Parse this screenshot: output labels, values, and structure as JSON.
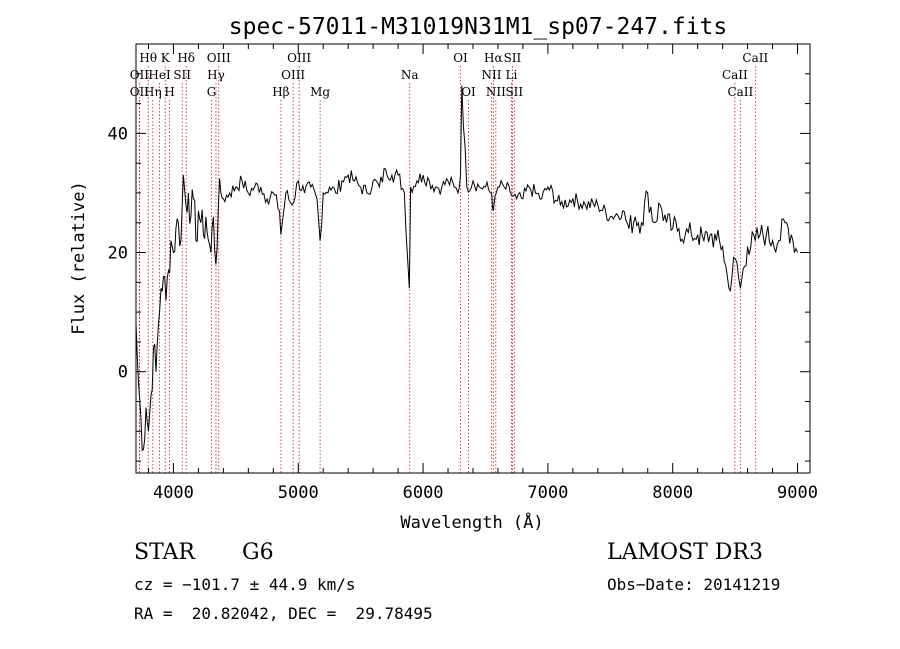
{
  "chart_data": {
    "type": "line",
    "title": "spec-57011-M31019N31M1_sp07-247.fits",
    "xlabel": "Wavelength (Å)",
    "ylabel": "Flux (relative)",
    "xlim": [
      3700,
      9100
    ],
    "ylim": [
      -17,
      55
    ],
    "xticks": [
      4000,
      5000,
      6000,
      7000,
      8000,
      9000
    ],
    "yticks": [
      0,
      20,
      40
    ],
    "grid": false,
    "line_color": "#000000",
    "marker_color": "#b22222",
    "series": [
      {
        "x": [
          3700,
          3720,
          3740,
          3760,
          3780,
          3800,
          3820,
          3840,
          3860,
          3880,
          3900,
          3920,
          3940,
          3960,
          3980,
          4000,
          4020,
          4040,
          4060,
          4080,
          4100,
          4120,
          4140,
          4160,
          4180,
          4200,
          4220,
          4240,
          4260,
          4280,
          4300,
          4320,
          4340,
          4360,
          4380,
          4400,
          4450,
          4500,
          4550,
          4600,
          4650,
          4700,
          4750,
          4800,
          4850,
          4861,
          4900,
          4950,
          5000,
          5050,
          5100,
          5150,
          5175,
          5200,
          5250,
          5300,
          5350,
          5400,
          5450,
          5500,
          5550,
          5600,
          5650,
          5700,
          5750,
          5800,
          5850,
          5890,
          5900,
          5950,
          6000,
          6050,
          6100,
          6150,
          6200,
          6250,
          6280,
          6300,
          6310,
          6350,
          6400,
          6450,
          6500,
          6550,
          6563,
          6600,
          6650,
          6700,
          6750,
          6800,
          6850,
          6900,
          6950,
          7000,
          7100,
          7200,
          7300,
          7400,
          7500,
          7600,
          7650,
          7700,
          7750,
          7800,
          7850,
          7900,
          7950,
          8000,
          8050,
          8100,
          8150,
          8200,
          8250,
          8300,
          8350,
          8400,
          8450,
          8500,
          8542,
          8600,
          8662,
          8700,
          8750,
          8800,
          8850,
          8900,
          8950,
          9000
        ],
        "values": [
          8,
          -2,
          -8,
          -13,
          -6,
          -10,
          -4,
          4,
          0,
          8,
          14,
          16,
          12,
          17,
          22,
          20,
          24,
          25,
          22,
          33,
          28,
          30,
          26,
          29,
          22,
          27,
          25,
          23,
          26,
          22,
          20,
          26,
          18,
          28,
          30,
          29,
          30,
          31,
          32,
          30,
          31,
          31,
          29,
          30,
          27,
          23,
          30,
          28,
          32,
          30,
          31,
          29,
          22,
          30,
          31,
          30,
          32,
          33,
          32,
          31,
          30,
          32,
          31,
          34,
          33,
          33,
          30,
          14,
          31,
          32,
          33,
          32,
          31,
          31,
          32,
          31,
          30,
          33,
          48,
          31,
          32,
          31,
          31,
          30,
          27,
          31,
          31,
          30,
          29,
          29,
          31,
          30,
          29,
          31,
          28,
          29,
          28,
          28,
          26,
          27,
          24,
          26,
          25,
          30,
          25,
          28,
          25,
          24,
          24,
          23,
          23,
          23,
          22,
          23,
          22,
          21,
          14,
          19,
          14,
          21,
          22,
          23,
          23,
          22,
          22,
          25,
          23,
          20
        ]
      }
    ],
    "lines": [
      {
        "label": "Hθ",
        "x": 3798,
        "row": 1
      },
      {
        "label": "OII",
        "x": 3727,
        "row": 2
      },
      {
        "label": "OII",
        "x": 3727,
        "row": 3
      },
      {
        "label": "Hη",
        "x": 3835,
        "row": 3
      },
      {
        "label": "HeI",
        "x": 3889,
        "row": 2
      },
      {
        "label": "K",
        "x": 3934,
        "row": 1
      },
      {
        "label": "H",
        "x": 3969,
        "row": 3
      },
      {
        "label": "SII",
        "x": 4070,
        "row": 2
      },
      {
        "label": "Hδ",
        "x": 4102,
        "row": 1
      },
      {
        "label": "OIII",
        "x": 4363,
        "row": 1
      },
      {
        "label": "Hγ",
        "x": 4341,
        "row": 2
      },
      {
        "label": "G",
        "x": 4305,
        "row": 3
      },
      {
        "label": "Hβ",
        "x": 4861,
        "row": 3
      },
      {
        "label": "OIII",
        "x": 4959,
        "row": 2
      },
      {
        "label": "OIII",
        "x": 5007,
        "row": 1
      },
      {
        "label": "Mg",
        "x": 5175,
        "row": 3
      },
      {
        "label": "Na",
        "x": 5893,
        "row": 2
      },
      {
        "label": "OI",
        "x": 6300,
        "row": 1
      },
      {
        "label": "OI",
        "x": 6364,
        "row": 3
      },
      {
        "label": "Hα",
        "x": 6563,
        "row": 1
      },
      {
        "label": "NII",
        "x": 6548,
        "row": 2
      },
      {
        "label": "NII",
        "x": 6583,
        "row": 3
      },
      {
        "label": "SII",
        "x": 6716,
        "row": 1
      },
      {
        "label": "Li",
        "x": 6708,
        "row": 2
      },
      {
        "label": "SII",
        "x": 6731,
        "row": 3
      },
      {
        "label": "CaII",
        "x": 8662,
        "row": 1
      },
      {
        "label": "CaII",
        "x": 8498,
        "row": 2
      },
      {
        "label": "CaII",
        "x": 8542,
        "row": 3
      }
    ]
  },
  "info": {
    "class": "STAR",
    "subclass": "G6",
    "survey": "LAMOST DR3",
    "cz": "cz = −101.7 ± 44.9 km/s",
    "obs_date": "Obs−Date: 20141219",
    "coords": "RA =  20.82042, DEC =  29.78495"
  }
}
